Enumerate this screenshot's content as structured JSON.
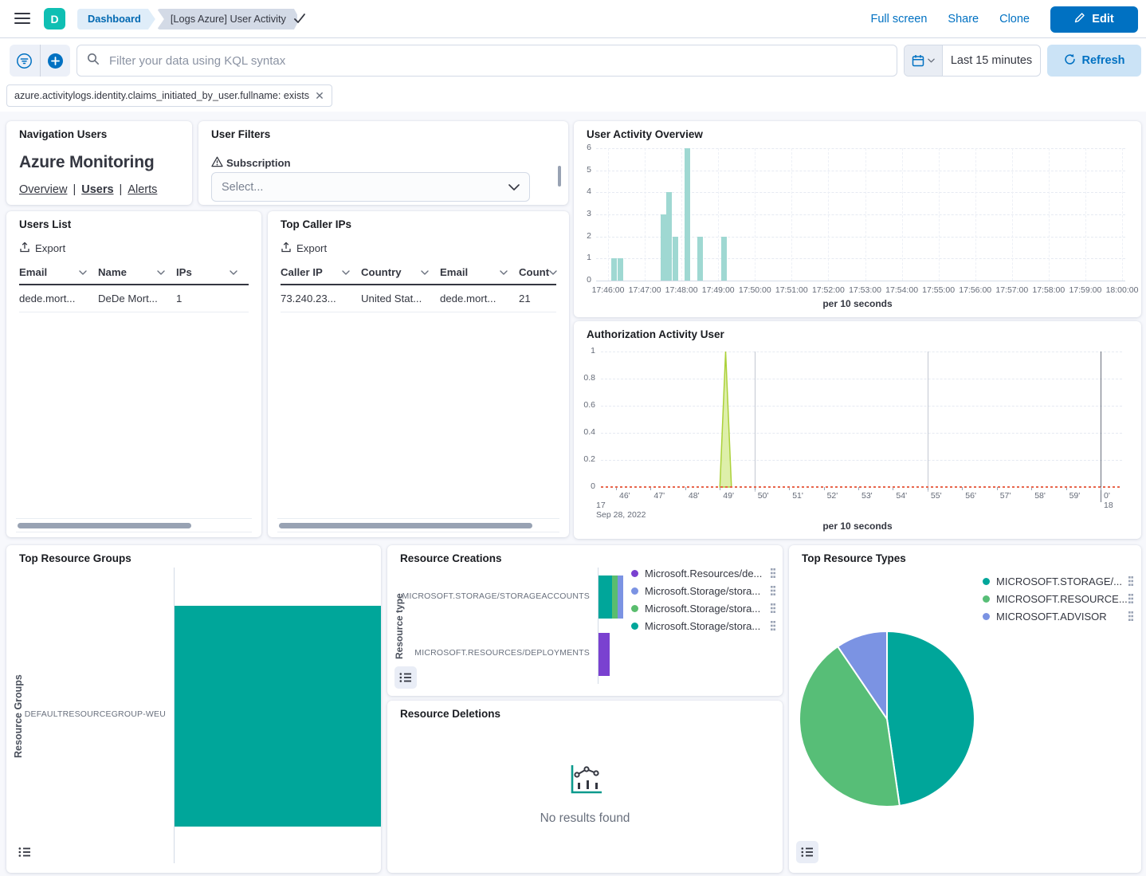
{
  "header": {
    "logo_text": "D",
    "breadcrumbs": [
      "Dashboard",
      "[Logs Azure] User Activity"
    ],
    "actions": {
      "full_screen": "Full screen",
      "share": "Share",
      "clone": "Clone",
      "edit": "Edit"
    }
  },
  "query_bar": {
    "search_placeholder": "Filter your data using KQL syntax",
    "time_range": "Last 15 minutes",
    "refresh_label": "Refresh"
  },
  "filter_pill": "azure.activitylogs.identity.claims_initiated_by_user.fullname: exists",
  "panels": {
    "navigation_users": {
      "title": "Navigation Users",
      "heading": "Azure Monitoring",
      "links": [
        "Overview",
        "Users",
        "Alerts"
      ],
      "separator": "|"
    },
    "user_filters": {
      "title": "User Filters",
      "field_label": "Subscription",
      "select_placeholder": "Select..."
    },
    "users_list": {
      "title": "Users List",
      "export_label": "Export",
      "columns": [
        "Email",
        "Name",
        "IPs"
      ],
      "rows": [
        [
          "dede.mort...",
          "DeDe Mort...",
          "1"
        ]
      ]
    },
    "top_caller_ips": {
      "title": "Top Caller IPs",
      "export_label": "Export",
      "columns": [
        "Caller IP",
        "Country",
        "Email",
        "Count"
      ],
      "rows": [
        [
          "73.240.23...",
          "United Stat...",
          "dede.mort...",
          "21"
        ]
      ]
    },
    "resource_deletions": {
      "title": "Resource Deletions",
      "empty_message": "No results found"
    }
  },
  "chart_data": [
    {
      "id": "user_activity_overview",
      "type": "bar",
      "title": "User Activity Overview",
      "xlabel": "per 10 seconds",
      "ylim": [
        0,
        6
      ],
      "yticks": [
        0,
        1,
        2,
        3,
        4,
        5,
        6
      ],
      "xticks": [
        "17:46:00",
        "17:47:00",
        "17:48:00",
        "17:49:00",
        "17:50:00",
        "17:51:00",
        "17:52:00",
        "17:53:00",
        "17:54:00",
        "17:55:00",
        "17:56:00",
        "17:57:00",
        "17:58:00",
        "17:59:00",
        "18:00:00"
      ],
      "points": [
        {
          "t": "17:46:10",
          "v": 1
        },
        {
          "t": "17:46:20",
          "v": 1
        },
        {
          "t": "17:47:30",
          "v": 3
        },
        {
          "t": "17:47:40",
          "v": 4
        },
        {
          "t": "17:47:50",
          "v": 2
        },
        {
          "t": "17:48:10",
          "v": 6
        },
        {
          "t": "17:48:30",
          "v": 2
        },
        {
          "t": "17:49:10",
          "v": 2
        }
      ],
      "bar_color": "#9FD8D2"
    },
    {
      "id": "authorization_activity_user",
      "type": "area",
      "title": "Authorization Activity User",
      "xlabel": "per 10 seconds",
      "ylim": [
        0,
        1
      ],
      "yticks": [
        0,
        0.2,
        0.4,
        0.6,
        0.8,
        1
      ],
      "xticks": [
        "46'",
        "47'",
        "48'",
        "49'",
        "50'",
        "51'",
        "52'",
        "53'",
        "54'",
        "55'",
        "56'",
        "57'",
        "58'",
        "59'",
        "0'"
      ],
      "hour_label_start": "17",
      "hour_label_end": "18",
      "date_label": "Sep 28, 2022",
      "spike": [
        {
          "t": "17:49:00",
          "v": 0
        },
        {
          "t": "17:49:10",
          "v": 1
        },
        {
          "t": "17:49:20",
          "v": 0
        }
      ],
      "baseline_color": "#E8664C",
      "spike_fill": "#D8EC9B",
      "spike_stroke": "#ABD139"
    },
    {
      "id": "top_resource_groups",
      "type": "bar_horizontal",
      "title": "Top Resource Groups",
      "ylabel": "Resource Groups",
      "categories": [
        "DEFAULTRESOURCEGROUP-WEU"
      ],
      "values": [
        1
      ],
      "xmax": 1,
      "color": "#00A69A"
    },
    {
      "id": "resource_creations",
      "type": "bar_horizontal_stacked",
      "title": "Resource Creations",
      "ylabel": "Resource type",
      "categories": [
        "MICROSOFT.STORAGE/STORAGEACCOUNTS",
        "MICROSOFT.RESOURCES/DEPLOYMENTS"
      ],
      "series": [
        {
          "name": "Microsoft.Resources/de...",
          "color": "#7A41D0",
          "values": [
            0,
            4
          ]
        },
        {
          "name": "Microsoft.Storage/stora...",
          "color": "#7B93E3",
          "values": [
            2,
            0
          ]
        },
        {
          "name": "Microsoft.Storage/stora...",
          "color": "#5ABD6E",
          "values": [
            2,
            0
          ]
        },
        {
          "name": "Microsoft.Storage/stora...",
          "color": "#00A69A",
          "values": [
            5,
            0
          ]
        }
      ],
      "stack_order": [
        3,
        2,
        1,
        0
      ]
    },
    {
      "id": "top_resource_types",
      "type": "pie",
      "title": "Top Resource Types",
      "slices": [
        {
          "name": "MICROSOFT.STORAGE/...",
          "color": "#00A69A",
          "pct": 47.7
        },
        {
          "name": "MICROSOFT.RESOURCE...",
          "color": "#57BE77",
          "pct": 42.8
        },
        {
          "name": "MICROSOFT.ADVISOR",
          "color": "#7B93E3",
          "pct": 9.5
        }
      ],
      "legend_position": "right"
    }
  ]
}
